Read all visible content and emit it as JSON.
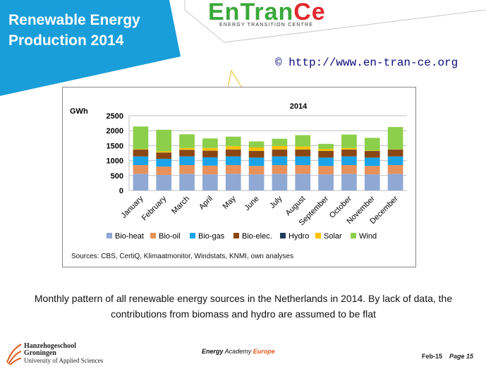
{
  "header": {
    "title_line1": "Renewable Energy",
    "title_line2": "Production 2014",
    "banner_color": "#1a9ed9",
    "logo_main_green": "EnTran",
    "logo_main_red": "Ce",
    "logo_sub": "ENERGY TRANSITION CENTRE",
    "url": "© http://www.en-tran-ce.org"
  },
  "chart_data": {
    "type": "bar",
    "stacked": true,
    "title": "2014",
    "ylabel": "GWh",
    "ylim": [
      0,
      2500
    ],
    "yticks": [
      0,
      500,
      1000,
      1500,
      2000,
      2500
    ],
    "grid": true,
    "legend_position": "bottom",
    "categories": [
      "January",
      "February",
      "March",
      "April",
      "May",
      "June",
      "July",
      "August",
      "September",
      "October",
      "November",
      "December"
    ],
    "series": [
      {
        "name": "Bio-heat",
        "color": "#8fa8d4",
        "values": [
          560,
          520,
          560,
          540,
          560,
          540,
          560,
          560,
          540,
          560,
          540,
          560
        ]
      },
      {
        "name": "Bio-oil",
        "color": "#e8915a",
        "values": [
          290,
          280,
          290,
          290,
          290,
          280,
          290,
          290,
          280,
          290,
          280,
          290
        ]
      },
      {
        "name": "Bio-gas",
        "color": "#1aa3e8",
        "values": [
          290,
          260,
          290,
          280,
          290,
          280,
          290,
          290,
          280,
          290,
          280,
          290
        ]
      },
      {
        "name": "Bio-elec.",
        "color": "#8b4513",
        "values": [
          220,
          200,
          210,
          210,
          220,
          210,
          220,
          220,
          210,
          220,
          210,
          220
        ]
      },
      {
        "name": "Hydro",
        "color": "#1f3b5a",
        "values": [
          10,
          10,
          10,
          10,
          10,
          10,
          10,
          10,
          10,
          10,
          10,
          10
        ]
      },
      {
        "name": "Solar",
        "color": "#ffc000",
        "values": [
          20,
          40,
          60,
          90,
          110,
          120,
          120,
          100,
          70,
          50,
          20,
          10
        ]
      },
      {
        "name": "Wind",
        "color": "#8ccf4a",
        "values": [
          750,
          720,
          460,
          320,
          320,
          200,
          240,
          380,
          170,
          450,
          420,
          740
        ]
      }
    ],
    "sources": "Sources: CBS, CertiQ, Klimaatmonitor, Windstats, KNMI, own analyses"
  },
  "caption": {
    "line1": "Monthly pattern of all renewable energy sources in the Netherlands in 2014. By lack of data, the",
    "line2": "contributions from biomass and hydro are assumed to be flat"
  },
  "footer": {
    "school_line1": "Hanzehogeschool",
    "school_line2": "Groningen",
    "school_line3": "University of Applied Sciences",
    "center_prefix": "Energy",
    "center_mid": " Academy ",
    "center_suffix": "Europe",
    "date": "Feb-15",
    "page": "Page 15"
  }
}
